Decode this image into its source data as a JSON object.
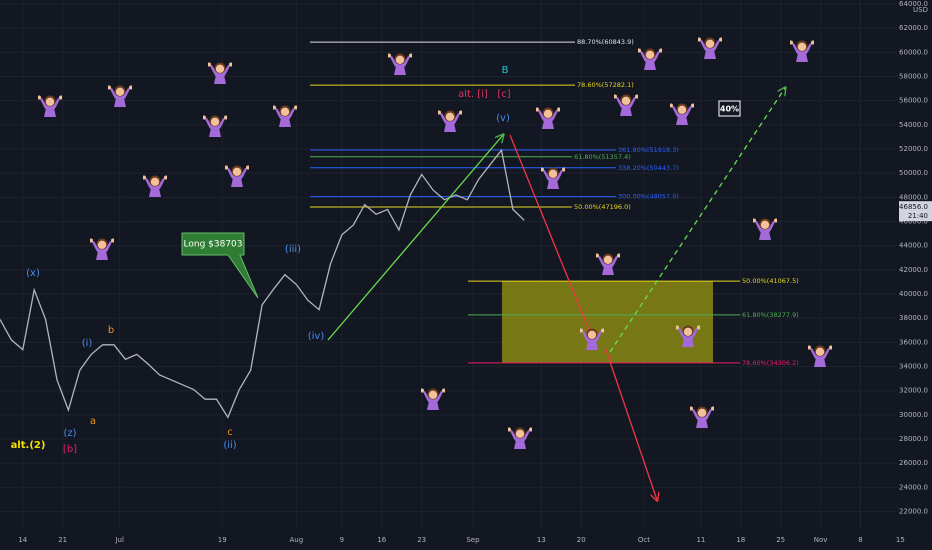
{
  "chart_data": {
    "type": "line",
    "currency": "USD",
    "x": [
      -4,
      -2,
      0,
      2,
      4,
      6,
      8,
      10,
      12,
      14,
      16,
      18,
      20,
      22,
      24,
      26,
      28,
      30,
      32,
      34,
      36,
      38,
      40,
      42,
      44,
      46,
      48,
      50,
      52,
      54,
      56,
      58,
      60,
      62,
      64,
      66,
      68,
      70,
      72,
      74,
      76,
      78,
      80,
      82,
      84,
      86,
      88
    ],
    "series": [
      {
        "color": "#b2b5be",
        "values": [
          37900,
          36200,
          35400,
          40350,
          37900,
          32900,
          30400,
          33700,
          35000,
          35800,
          35800,
          34600,
          35000,
          34200,
          33300,
          32900,
          32500,
          32100,
          31300,
          31300,
          29800,
          32100,
          33700,
          39100,
          40400,
          41600,
          40800,
          39500,
          38700,
          42500,
          44900,
          45700,
          47400,
          46600,
          47000,
          45300,
          48200,
          49900,
          48600,
          47800,
          48200,
          47800,
          49500,
          50700,
          51900,
          47000,
          46100
        ]
      }
    ],
    "xlim": [
      -4,
      157.8
    ],
    "ylim": [
      21300,
      64330
    ],
    "xticks": [
      {
        "value": 0,
        "label": "14"
      },
      {
        "value": 7,
        "label": "21"
      },
      {
        "value": 17,
        "label": "Jul"
      },
      {
        "value": 35,
        "label": "19"
      },
      {
        "value": 48,
        "label": "Aug"
      },
      {
        "value": 56,
        "label": "9"
      },
      {
        "value": 63,
        "label": "16"
      },
      {
        "value": 70,
        "label": "23"
      },
      {
        "value": 79,
        "label": "Sep"
      },
      {
        "value": 91,
        "label": "13"
      },
      {
        "value": 98,
        "label": "20"
      },
      {
        "value": 109,
        "label": "Oct"
      },
      {
        "value": 119,
        "label": "11"
      },
      {
        "value": 126,
        "label": "18"
      },
      {
        "value": 133,
        "label": "25"
      },
      {
        "value": 140,
        "label": "Nov"
      },
      {
        "value": 147,
        "label": "8"
      },
      {
        "value": 154,
        "label": "15"
      }
    ],
    "yticks": [
      {
        "value": 22000,
        "label": "22000.0"
      },
      {
        "value": 24000,
        "label": "24000.0"
      },
      {
        "value": 26000,
        "label": "26000.0"
      },
      {
        "value": 28000,
        "label": "28000.0"
      },
      {
        "value": 30000,
        "label": "30000.0"
      },
      {
        "value": 32000,
        "label": "32000.0"
      },
      {
        "value": 34000,
        "label": "34000.0"
      },
      {
        "value": 36000,
        "label": "36000.0"
      },
      {
        "value": 38000,
        "label": "38000.0"
      },
      {
        "value": 40000,
        "label": "40000.0"
      },
      {
        "value": 42000,
        "label": "42000.0"
      },
      {
        "value": 44000,
        "label": "44000.0"
      },
      {
        "value": 46000,
        "label": "46000.0"
      },
      {
        "value": 48000,
        "label": "48000.0"
      },
      {
        "value": 50000,
        "label": "50000.0"
      },
      {
        "value": 52000,
        "label": "52000.0"
      },
      {
        "value": 54000,
        "label": "54000.0"
      },
      {
        "value": 56000,
        "label": "56000.0"
      },
      {
        "value": 58000,
        "label": "58000.0"
      },
      {
        "value": 60000,
        "label": "60000.0"
      },
      {
        "value": 62000,
        "label": "62000.0"
      },
      {
        "value": 64000,
        "label": "64000.0"
      }
    ],
    "last_price": {
      "value": 46856,
      "label": "46856.0"
    },
    "countdown": "21:40",
    "levels": [
      {
        "label": "88.70%(60843.9)",
        "value": 60843.9,
        "color": "#e0e3eb"
      },
      {
        "label": "78.60%(57282.1)",
        "value": 57282.1,
        "color": "#e6d720"
      },
      {
        "label": "361.80%(51918.3)",
        "value": 51918.3,
        "color": "#2962ff"
      },
      {
        "label": "61.80%(51357.4)",
        "value": 51357.4,
        "color": "#4caf50"
      },
      {
        "label": "338.20%(50443.7)",
        "value": 50443.7,
        "color": "#2962ff"
      },
      {
        "label": "300.00%(48057.0)",
        "value": 48057.0,
        "color": "#2962ff"
      },
      {
        "label": "50.00%(47196.0)",
        "value": 47196.0,
        "color": "#e6d720"
      },
      {
        "label": "50.00%(41067.5)",
        "value": 41067.5,
        "color": "#e6d720"
      },
      {
        "label": "61.80%(38277.9)",
        "value": 38277.9,
        "color": "#4caf50"
      },
      {
        "label": "78.60%(34306.2)",
        "value": 34306.2,
        "color": "#e91e63"
      }
    ],
    "annotations": [
      {
        "text": "(x)",
        "color": "#4a8cf0"
      },
      {
        "text": "(z)",
        "color": "#4a8cf0"
      },
      {
        "text": "[b]",
        "color": "#e91e63"
      },
      {
        "text": "alt.(2)",
        "color": "#f5e100"
      },
      {
        "text": "(i)",
        "color": "#4a8cf0"
      },
      {
        "text": "b",
        "color": "#f0941c"
      },
      {
        "text": "a",
        "color": "#f0941c"
      },
      {
        "text": "c",
        "color": "#f0941c"
      },
      {
        "text": "(ii)",
        "color": "#4a8cf0"
      },
      {
        "text": "(iii)",
        "color": "#4a8cf0"
      },
      {
        "text": "(iv)",
        "color": "#4a8cf0"
      },
      {
        "text": "(v)",
        "color": "#4a8cf0"
      },
      {
        "text": "B",
        "color": "#26c6da"
      },
      {
        "text": "alt. [i]",
        "color": "#e0335f"
      },
      {
        "text": "[c]",
        "color": "#e0335f"
      }
    ],
    "callout": "Long $38703",
    "box_label": "40%"
  }
}
